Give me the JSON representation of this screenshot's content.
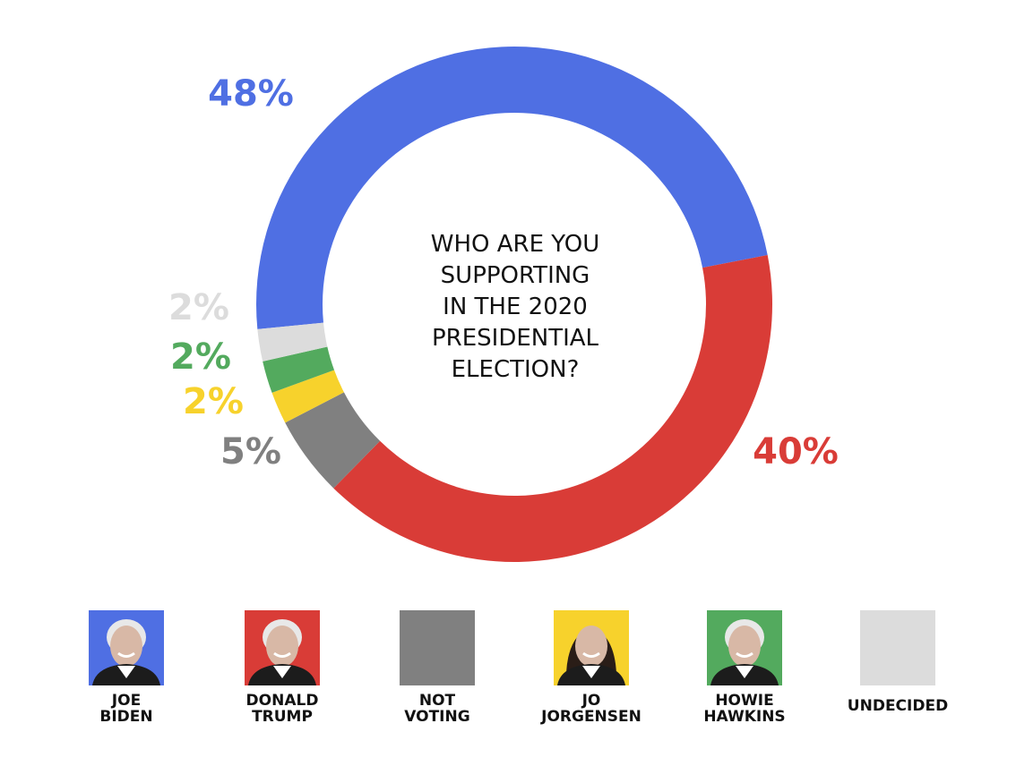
{
  "chart_data": {
    "type": "pie",
    "title_lines": [
      "WHO ARE YOU",
      "SUPPORTING",
      "IN THE 2020",
      "PRESIDENTIAL",
      "ELECTION?"
    ],
    "slices": [
      {
        "name": "JOE BIDEN",
        "value": 48,
        "label": "48%",
        "color": "#4f6fe3"
      },
      {
        "name": "DONALD TRUMP",
        "value": 40,
        "label": "40%",
        "color": "#d93c37"
      },
      {
        "name": "NOT VOTING",
        "value": 5,
        "label": "5%",
        "color": "#808080"
      },
      {
        "name": "JO JORGENSEN",
        "value": 2,
        "label": "2%",
        "color": "#f7d22c"
      },
      {
        "name": "HOWIE HAWKINS",
        "value": 2,
        "label": "2%",
        "color": "#53aa5e"
      },
      {
        "name": "UNDECIDED",
        "value": 2,
        "label": "2%",
        "color": "#dcdcdc"
      }
    ]
  },
  "legend": [
    {
      "line1": "JOE",
      "line2": "BIDEN",
      "color": "#4f6fe3",
      "icon": "photo-joe-biden"
    },
    {
      "line1": "DONALD",
      "line2": "TRUMP",
      "color": "#d93c37",
      "icon": "photo-donald-trump"
    },
    {
      "line1": "NOT",
      "line2": "VOTING",
      "color": "#808080",
      "icon": ""
    },
    {
      "line1": "JO",
      "line2": "JORGENSEN",
      "color": "#f7d22c",
      "icon": "photo-jo-jorgensen"
    },
    {
      "line1": "HOWIE",
      "line2": "HAWKINS",
      "color": "#53aa5e",
      "icon": "photo-howie-hawkins"
    },
    {
      "line1": "UNDECIDED",
      "line2": "",
      "color": "#dcdcdc",
      "icon": ""
    }
  ]
}
